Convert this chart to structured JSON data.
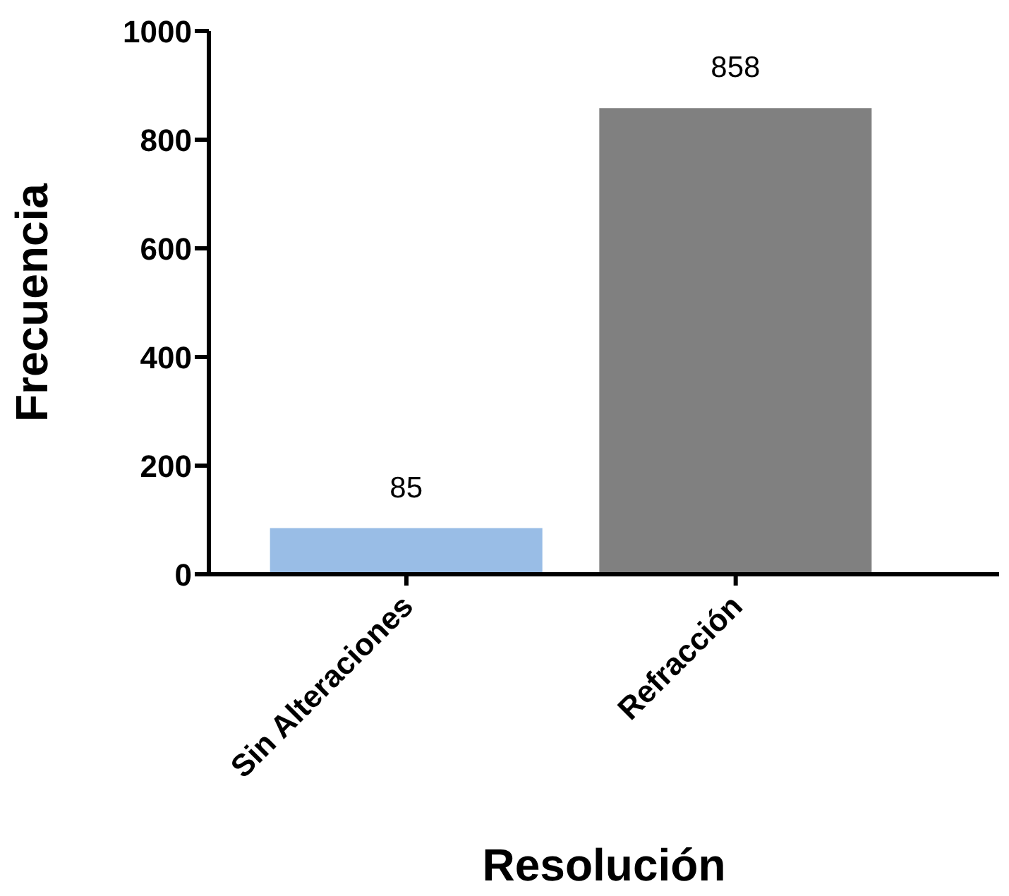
{
  "chart_data": {
    "type": "bar",
    "xlabel": "Resolución",
    "ylabel": "Frecuencia",
    "categories": [
      "Sin Alteraciones",
      "Refracción"
    ],
    "values": [
      85,
      858
    ],
    "colors": [
      "#99bde6",
      "#808080"
    ],
    "ylim": [
      0,
      1000
    ],
    "yticks": [
      0,
      200,
      400,
      600,
      800,
      1000
    ],
    "grid": false,
    "legend": false,
    "data_labels": true
  }
}
